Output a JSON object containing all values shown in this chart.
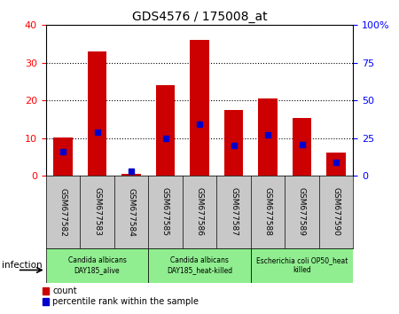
{
  "title": "GDS4576 / 175008_at",
  "samples": [
    "GSM677582",
    "GSM677583",
    "GSM677584",
    "GSM677585",
    "GSM677586",
    "GSM677587",
    "GSM677588",
    "GSM677589",
    "GSM677590"
  ],
  "counts": [
    10.2,
    33.0,
    0.5,
    24.0,
    36.0,
    17.5,
    20.5,
    15.3,
    6.2
  ],
  "percentiles": [
    16,
    29,
    3,
    25,
    34,
    20,
    27,
    21,
    9
  ],
  "ylim_left": [
    0,
    40
  ],
  "ylim_right": [
    0,
    100
  ],
  "yticks_left": [
    0,
    10,
    20,
    30,
    40
  ],
  "yticks_right": [
    0,
    25,
    50,
    75,
    100
  ],
  "yticklabels_right": [
    "0",
    "25",
    "50",
    "75",
    "100%"
  ],
  "bar_color": "#CC0000",
  "dot_color": "#0000CC",
  "tick_area_bg": "#c8c8c8",
  "groups": [
    {
      "label": "Candida albicans\nDAY185_alive",
      "start": 0,
      "end": 2,
      "color": "#90EE90"
    },
    {
      "label": "Candida albicans\nDAY185_heat-killed",
      "start": 3,
      "end": 5,
      "color": "#90EE90"
    },
    {
      "label": "Escherichia coli OP50_heat\nkilled",
      "start": 6,
      "end": 8,
      "color": "#90EE90"
    }
  ],
  "xlabel_infection": "infection",
  "legend_count": "count",
  "legend_percentile": "percentile rank within the sample",
  "bar_width": 0.55
}
